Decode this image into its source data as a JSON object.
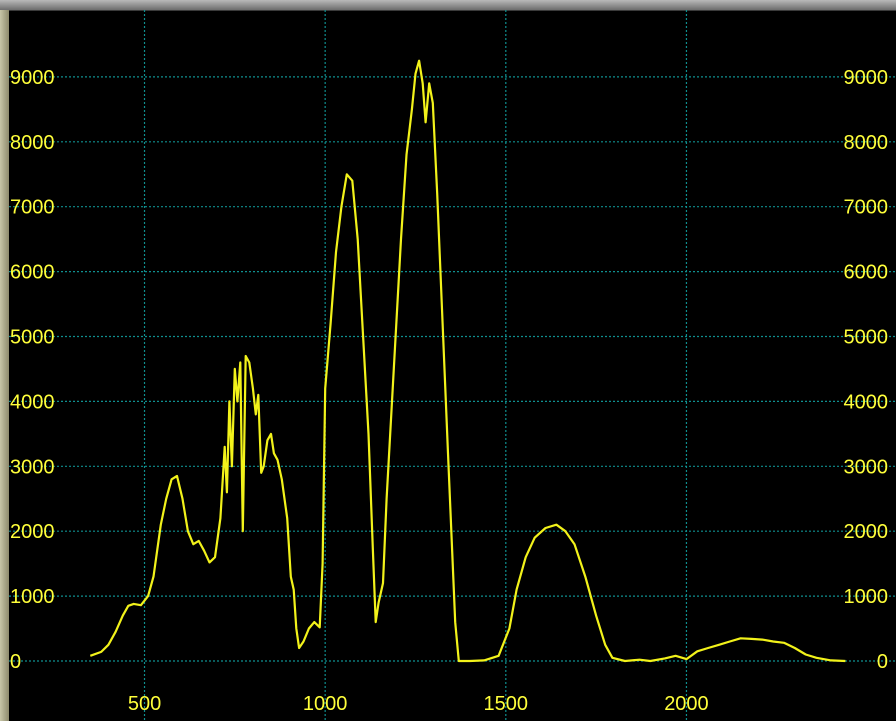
{
  "chart_data": {
    "type": "line",
    "title": "",
    "xlabel": "",
    "ylabel": "",
    "xlim": [
      100,
      2580
    ],
    "ylim": [
      -150,
      10000
    ],
    "x_ticks": [
      500,
      1000,
      1500,
      2000
    ],
    "y_ticks": [
      0,
      1000,
      2000,
      3000,
      4000,
      5000,
      6000,
      7000,
      8000,
      9000
    ],
    "grid": true,
    "legend": "none",
    "colors": {
      "background": "#000000",
      "grid": "#0f8f8f",
      "line": "#f2f21a",
      "labels": "#ffff3a"
    },
    "series": [
      {
        "points": [
          [
            350,
            80
          ],
          [
            380,
            140
          ],
          [
            400,
            250
          ],
          [
            420,
            450
          ],
          [
            440,
            700
          ],
          [
            455,
            850
          ],
          [
            470,
            880
          ],
          [
            490,
            860
          ],
          [
            510,
            1000
          ],
          [
            525,
            1300
          ],
          [
            545,
            2100
          ],
          [
            560,
            2500
          ],
          [
            575,
            2800
          ],
          [
            590,
            2850
          ],
          [
            605,
            2500
          ],
          [
            620,
            2000
          ],
          [
            635,
            1800
          ],
          [
            650,
            1850
          ],
          [
            665,
            1700
          ],
          [
            680,
            1520
          ],
          [
            695,
            1600
          ],
          [
            710,
            2200
          ],
          [
            722,
            3300
          ],
          [
            728,
            2600
          ],
          [
            735,
            4000
          ],
          [
            742,
            3000
          ],
          [
            750,
            4500
          ],
          [
            757,
            4000
          ],
          [
            765,
            4600
          ],
          [
            772,
            2000
          ],
          [
            780,
            4700
          ],
          [
            790,
            4600
          ],
          [
            800,
            4200
          ],
          [
            808,
            3800
          ],
          [
            815,
            4100
          ],
          [
            823,
            2900
          ],
          [
            830,
            3000
          ],
          [
            840,
            3400
          ],
          [
            850,
            3500
          ],
          [
            858,
            3200
          ],
          [
            868,
            3100
          ],
          [
            880,
            2800
          ],
          [
            895,
            2200
          ],
          [
            905,
            1300
          ],
          [
            913,
            1100
          ],
          [
            920,
            500
          ],
          [
            928,
            200
          ],
          [
            940,
            300
          ],
          [
            955,
            500
          ],
          [
            970,
            600
          ],
          [
            985,
            520
          ],
          [
            993,
            1500
          ],
          [
            1000,
            4200
          ],
          [
            1015,
            5200
          ],
          [
            1030,
            6300
          ],
          [
            1045,
            7000
          ],
          [
            1060,
            7500
          ],
          [
            1075,
            7400
          ],
          [
            1090,
            6500
          ],
          [
            1105,
            5000
          ],
          [
            1120,
            3500
          ],
          [
            1132,
            1700
          ],
          [
            1140,
            600
          ],
          [
            1148,
            900
          ],
          [
            1160,
            1200
          ],
          [
            1170,
            2500
          ],
          [
            1190,
            4500
          ],
          [
            1210,
            6500
          ],
          [
            1225,
            7800
          ],
          [
            1240,
            8500
          ],
          [
            1250,
            9050
          ],
          [
            1260,
            9250
          ],
          [
            1270,
            8900
          ],
          [
            1278,
            8300
          ],
          [
            1288,
            8900
          ],
          [
            1298,
            8600
          ],
          [
            1310,
            7200
          ],
          [
            1325,
            5200
          ],
          [
            1340,
            3200
          ],
          [
            1360,
            600
          ],
          [
            1370,
            0
          ],
          [
            1400,
            0
          ],
          [
            1440,
            10
          ],
          [
            1480,
            80
          ],
          [
            1510,
            500
          ],
          [
            1530,
            1100
          ],
          [
            1555,
            1600
          ],
          [
            1580,
            1900
          ],
          [
            1610,
            2050
          ],
          [
            1640,
            2100
          ],
          [
            1665,
            2000
          ],
          [
            1690,
            1800
          ],
          [
            1720,
            1300
          ],
          [
            1750,
            700
          ],
          [
            1775,
            250
          ],
          [
            1795,
            50
          ],
          [
            1830,
            0
          ],
          [
            1870,
            20
          ],
          [
            1900,
            0
          ],
          [
            1940,
            40
          ],
          [
            1970,
            80
          ],
          [
            2000,
            30
          ],
          [
            2030,
            150
          ],
          [
            2060,
            200
          ],
          [
            2090,
            250
          ],
          [
            2120,
            300
          ],
          [
            2150,
            350
          ],
          [
            2180,
            340
          ],
          [
            2210,
            330
          ],
          [
            2240,
            300
          ],
          [
            2270,
            280
          ],
          [
            2300,
            200
          ],
          [
            2330,
            100
          ],
          [
            2360,
            50
          ],
          [
            2400,
            10
          ],
          [
            2440,
            0
          ]
        ]
      }
    ]
  }
}
